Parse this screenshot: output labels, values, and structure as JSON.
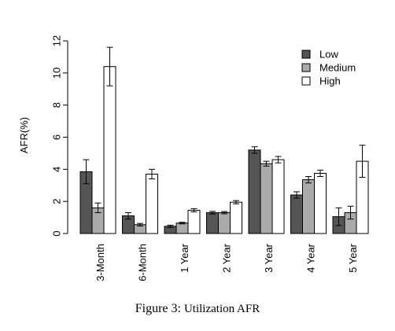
{
  "chart_data": {
    "type": "bar",
    "categories": [
      "3-Month",
      "6-Month",
      "1 Year",
      "2 Year",
      "3 Year",
      "4 Year",
      "5 Year"
    ],
    "series": [
      {
        "name": "Low",
        "color": "#555555",
        "values": [
          3.85,
          1.1,
          0.45,
          1.3,
          5.2,
          2.4,
          1.05
        ],
        "errors": [
          0.75,
          0.2,
          0.07,
          0.08,
          0.2,
          0.2,
          0.55
        ]
      },
      {
        "name": "Medium",
        "color": "#aaaaaa",
        "values": [
          1.6,
          0.55,
          0.65,
          1.3,
          4.35,
          3.35,
          1.3
        ],
        "errors": [
          0.3,
          0.08,
          0.05,
          0.07,
          0.15,
          0.2,
          0.4
        ]
      },
      {
        "name": "High",
        "color": "#ffffff",
        "values": [
          10.4,
          3.7,
          1.45,
          1.95,
          4.6,
          3.75,
          4.5
        ],
        "errors": [
          1.2,
          0.3,
          0.1,
          0.1,
          0.2,
          0.2,
          1.0
        ]
      }
    ],
    "ylabel": "AFR(%)",
    "xlabel": "",
    "ylim": [
      0,
      12
    ],
    "yticks": [
      0,
      2,
      4,
      6,
      8,
      10,
      12
    ],
    "legend_position": "top-right",
    "grid": false
  },
  "caption": {
    "prefix": "Figure 3:",
    "text": "Utilization AFR"
  }
}
